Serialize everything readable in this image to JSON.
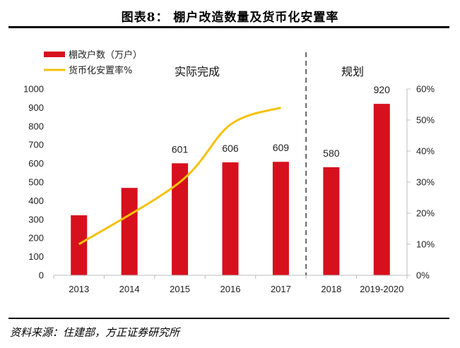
{
  "title": "图表8：  棚户改造数量及货币化安置率",
  "source": "资料来源：住建部，方正证券研究所",
  "colors": {
    "bar": "#d7101e",
    "line": "#f5c20b",
    "divider": "#666666"
  },
  "chart_data": {
    "type": "bar",
    "categories": [
      "2013",
      "2014",
      "2015",
      "2016",
      "2017",
      "2018",
      "2019-2020"
    ],
    "series": [
      {
        "name": "棚改户数（万户）",
        "type": "bar",
        "axis": "left",
        "values": [
          322,
          469,
          601,
          606,
          609,
          580,
          920
        ]
      },
      {
        "name": "货币化安置率%",
        "type": "line",
        "axis": "right",
        "values": [
          10,
          null,
          30,
          48.5,
          54,
          null,
          null
        ]
      }
    ],
    "data_labels": {
      "2015": "601",
      "2016": "606",
      "2017": "609",
      "2018": "580",
      "2019-2020": "920"
    },
    "left_axis": {
      "ylim": [
        0,
        1000
      ],
      "ticks": [
        "0",
        "100",
        "200",
        "300",
        "400",
        "500",
        "600",
        "700",
        "800",
        "900",
        "1000"
      ]
    },
    "right_axis": {
      "ylim": [
        0,
        60
      ],
      "ticks": [
        "0%",
        "10%",
        "20%",
        "30%",
        "40%",
        "50%",
        "60%"
      ]
    },
    "sections": {
      "actual": "实际完成",
      "plan": "规划"
    },
    "legend_position": "top-left"
  }
}
